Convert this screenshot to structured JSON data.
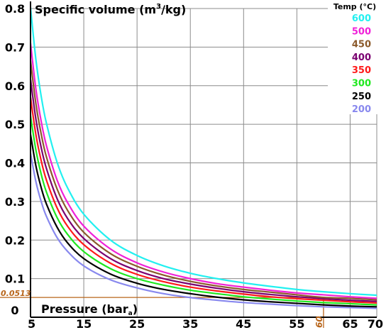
{
  "chart_data": {
    "type": "line",
    "title": "Specific volume (m³/kg)",
    "title_parts": {
      "main": "Specific volume (m",
      "sup": "3",
      "tail": "/kg)"
    },
    "xlabel": "Pressure (bar",
    "xlabel_sub": "a",
    "xlabel_close": ")",
    "xlim": [
      5,
      70
    ],
    "ylim": [
      0,
      0.8
    ],
    "x_ticks": [
      "5",
      "15",
      "25",
      "35",
      "45",
      "55",
      "65",
      "70"
    ],
    "x_tick_values": [
      5,
      15,
      25,
      35,
      45,
      55,
      65,
      70
    ],
    "y_ticks": [
      "0",
      "0.1",
      "0.2",
      "0.3",
      "0.4",
      "0.5",
      "0.6",
      "0.7",
      "0.8"
    ],
    "y_tick_values": [
      0,
      0.1,
      0.2,
      0.3,
      0.4,
      0.5,
      0.6,
      0.7,
      0.8
    ],
    "grid": true,
    "legend_title": "Temp (°C)",
    "legend_position": "top-right",
    "annotation": {
      "x": 60,
      "y": 0.0513,
      "x_label": "60",
      "y_label": "0.0513",
      "color": "#b8651a"
    },
    "x": [
      5,
      6,
      7,
      8,
      10,
      12,
      15,
      20,
      25,
      30,
      35,
      40,
      45,
      50,
      55,
      60,
      65,
      70
    ],
    "series": [
      {
        "name": "600",
        "color": "#22f0f0",
        "values": [
          0.803,
          0.669,
          0.573,
          0.502,
          0.401,
          0.334,
          0.267,
          0.2,
          0.16,
          0.133,
          0.114,
          0.1,
          0.089,
          0.08,
          0.072,
          0.066,
          0.061,
          0.057
        ]
      },
      {
        "name": "500",
        "color": "#f020d8",
        "values": [
          0.711,
          0.592,
          0.508,
          0.444,
          0.355,
          0.296,
          0.236,
          0.177,
          0.141,
          0.117,
          0.1,
          0.087,
          0.078,
          0.07,
          0.063,
          0.058,
          0.053,
          0.049
        ]
      },
      {
        "name": "450",
        "color": "#8b5a2b",
        "values": [
          0.665,
          0.554,
          0.475,
          0.415,
          0.332,
          0.276,
          0.22,
          0.165,
          0.132,
          0.109,
          0.093,
          0.081,
          0.072,
          0.065,
          0.058,
          0.0513,
          0.049,
          0.045
        ]
      },
      {
        "name": "400",
        "color": "#7a0070",
        "values": [
          0.617,
          0.514,
          0.44,
          0.385,
          0.307,
          0.255,
          0.204,
          0.152,
          0.121,
          0.1,
          0.086,
          0.075,
          0.066,
          0.059,
          0.053,
          0.048,
          0.044,
          0.041
        ]
      },
      {
        "name": "350",
        "color": "#ff1a1a",
        "values": [
          0.57,
          0.474,
          0.406,
          0.355,
          0.283,
          0.235,
          0.188,
          0.14,
          0.111,
          0.092,
          0.078,
          0.068,
          0.06,
          0.053,
          0.048,
          0.044,
          0.04,
          0.037
        ]
      },
      {
        "name": "300",
        "color": "#1ee81e",
        "values": [
          0.522,
          0.434,
          0.371,
          0.324,
          0.258,
          0.214,
          0.17,
          0.126,
          0.1,
          0.083,
          0.07,
          0.061,
          0.053,
          0.047,
          0.042,
          0.038,
          0.035,
          0.032
        ]
      },
      {
        "name": "250",
        "color": "#000000",
        "values": [
          0.474,
          0.393,
          0.336,
          0.293,
          0.233,
          0.192,
          0.152,
          0.112,
          0.088,
          0.072,
          0.061,
          0.052,
          0.045,
          0.04,
          0.036,
          0.032,
          0.029,
          0.027
        ]
      },
      {
        "name": "200",
        "color": "#8888ee",
        "values": [
          0.425,
          0.352,
          0.3,
          0.261,
          0.206,
          0.17,
          0.133,
          0.097,
          0.076,
          0.061,
          0.051,
          0.044,
          0.038,
          0.034,
          0.03,
          0.027,
          0.025,
          0.023
        ]
      }
    ]
  }
}
